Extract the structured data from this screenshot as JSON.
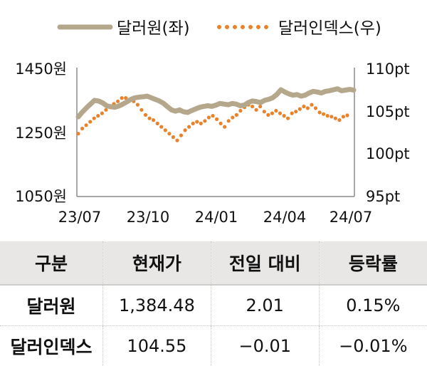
{
  "chart_data": {
    "type": "line",
    "series": [
      {
        "name": "달러원(좌)",
        "axis": "left",
        "color": "#b5a78c",
        "style": "solid",
        "values": [
          1300,
          1315,
          1328,
          1340,
          1352,
          1350,
          1344,
          1335,
          1332,
          1330,
          1334,
          1340,
          1347,
          1355,
          1360,
          1362,
          1363,
          1365,
          1360,
          1355,
          1350,
          1343,
          1332,
          1322,
          1318,
          1322,
          1316,
          1314,
          1320,
          1325,
          1330,
          1333,
          1335,
          1333,
          1337,
          1342,
          1340,
          1338,
          1342,
          1340,
          1335,
          1337,
          1345,
          1350,
          1348,
          1345,
          1352,
          1355,
          1360,
          1370,
          1385,
          1378,
          1372,
          1368,
          1370,
          1365,
          1368,
          1375,
          1380,
          1378,
          1375,
          1380,
          1382,
          1385,
          1388,
          1382,
          1384,
          1386,
          1384
        ]
      },
      {
        "name": "달러인덱스(우)",
        "axis": "right",
        "color": "#e8832b",
        "style": "dotted",
        "values": [
          102.4,
          103.0,
          103.4,
          103.8,
          104.2,
          104.5,
          104.8,
          105.2,
          105.5,
          105.9,
          106.2,
          106.6,
          106.6,
          106.4,
          106.2,
          105.8,
          105.2,
          104.6,
          104.2,
          104.0,
          103.6,
          103.2,
          102.8,
          102.4,
          102.0,
          101.6,
          102.2,
          102.8,
          103.2,
          103.6,
          103.8,
          103.6,
          103.9,
          104.3,
          104.5,
          104.1,
          103.6,
          103.2,
          103.9,
          104.3,
          104.6,
          105.1,
          105.5,
          105.8,
          105.6,
          105.2,
          105.6,
          105.0,
          104.6,
          104.8,
          105.1,
          104.8,
          104.5,
          104.2,
          104.8,
          105.0,
          105.3,
          105.6,
          105.4,
          105.8,
          105.4,
          104.9,
          104.7,
          104.5,
          104.4,
          104.2,
          104.0,
          104.4,
          104.55
        ]
      }
    ],
    "x_ticks": [
      "23/07",
      "23/10",
      "24/01",
      "24/04",
      "24/07"
    ],
    "y_left": {
      "min": 1050,
      "max": 1450,
      "ticks": [
        "1450원",
        "1250원",
        "1050원"
      ]
    },
    "y_right": {
      "min": 95,
      "max": 110,
      "ticks": [
        "110pt",
        "105pt",
        "100pt",
        "95pt"
      ]
    },
    "legend_position": "top",
    "grid": false
  },
  "table": {
    "headers": [
      "구분",
      "현재가",
      "전일 대비",
      "등락률"
    ],
    "rows": [
      [
        "달러원",
        "1,384.48",
        "2.01",
        "0.15%"
      ],
      [
        "달러인덱스",
        "104.55",
        "−0.01",
        "−0.01%"
      ]
    ]
  }
}
